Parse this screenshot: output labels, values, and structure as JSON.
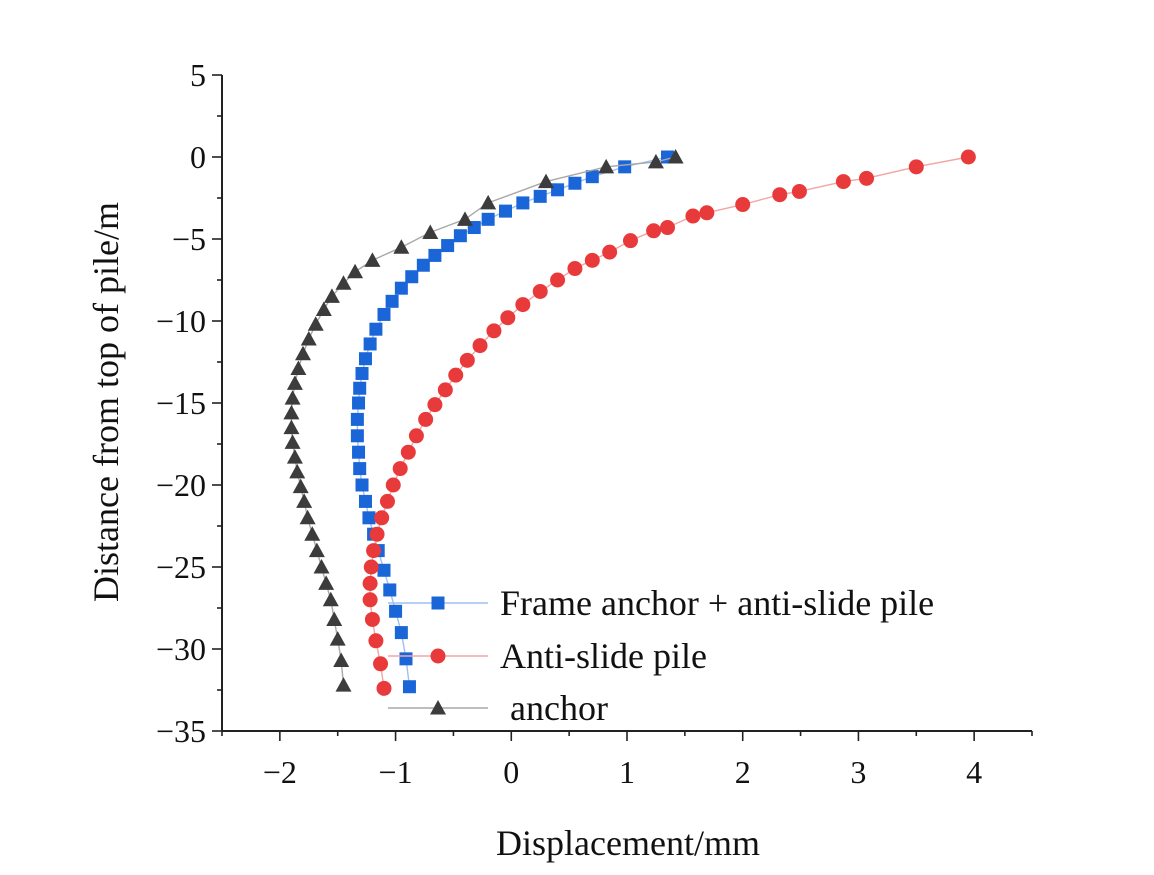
{
  "chart_data": {
    "type": "scatter",
    "title": "",
    "xlabel": "Displacement/mm",
    "ylabel": "Distance from top of pile/m",
    "xlim": [
      -2.5,
      4.5
    ],
    "ylim": [
      -35,
      5
    ],
    "xticks": [
      -2,
      -1,
      0,
      1,
      2,
      3,
      4
    ],
    "xtick_labels": [
      "−2",
      "−1",
      "0",
      "1",
      "2",
      "3",
      "4"
    ],
    "yticks": [
      5,
      0,
      -5,
      -10,
      -15,
      -20,
      -25,
      -30,
      -35
    ],
    "ytick_labels": [
      "5",
      "0",
      "−5",
      "−10",
      "−15",
      "−20",
      "−25",
      "−30",
      "−35"
    ],
    "legend_position": "bottom-right",
    "series": [
      {
        "name": "Frame anchor + anti-slide pile",
        "marker": "square",
        "color": "#1a66d9",
        "line_color": "#9ec0f0",
        "x": [
          1.35,
          0.98,
          0.7,
          0.55,
          0.4,
          0.25,
          0.1,
          -0.05,
          -0.2,
          -0.32,
          -0.44,
          -0.55,
          -0.66,
          -0.76,
          -0.86,
          -0.95,
          -1.03,
          -1.1,
          -1.17,
          -1.22,
          -1.26,
          -1.29,
          -1.31,
          -1.32,
          -1.33,
          -1.33,
          -1.32,
          -1.31,
          -1.29,
          -1.26,
          -1.23,
          -1.19,
          -1.15,
          -1.1,
          -1.05,
          -1.0,
          -0.95,
          -0.91,
          -0.88
        ],
        "y": [
          0,
          -0.6,
          -1.2,
          -1.6,
          -2.0,
          -2.4,
          -2.8,
          -3.3,
          -3.8,
          -4.3,
          -4.8,
          -5.4,
          -6.0,
          -6.6,
          -7.3,
          -8.0,
          -8.8,
          -9.6,
          -10.5,
          -11.4,
          -12.3,
          -13.2,
          -14.1,
          -15.0,
          -16.0,
          -17.0,
          -18.0,
          -19.0,
          -20.0,
          -21.0,
          -22.0,
          -23.0,
          -24.0,
          -25.2,
          -26.4,
          -27.7,
          -29.0,
          -30.6,
          -32.3
        ]
      },
      {
        "name": "Anti-slide pile",
        "marker": "circle",
        "color": "#e83a3a",
        "line_color": "#f3a5a5",
        "x": [
          3.95,
          3.5,
          3.07,
          2.87,
          2.49,
          2.32,
          2.0,
          1.69,
          1.57,
          1.35,
          1.23,
          1.03,
          0.85,
          0.7,
          0.55,
          0.4,
          0.25,
          0.1,
          -0.03,
          -0.15,
          -0.27,
          -0.38,
          -0.48,
          -0.57,
          -0.66,
          -0.74,
          -0.82,
          -0.89,
          -0.96,
          -1.02,
          -1.07,
          -1.12,
          -1.16,
          -1.19,
          -1.21,
          -1.22,
          -1.22,
          -1.2,
          -1.17,
          -1.13,
          -1.1
        ],
        "y": [
          0,
          -0.6,
          -1.3,
          -1.5,
          -2.1,
          -2.3,
          -2.9,
          -3.4,
          -3.6,
          -4.3,
          -4.5,
          -5.1,
          -5.8,
          -6.3,
          -6.8,
          -7.5,
          -8.2,
          -9.0,
          -9.8,
          -10.6,
          -11.5,
          -12.4,
          -13.3,
          -14.2,
          -15.1,
          -16.0,
          -17.0,
          -18.0,
          -19.0,
          -20.0,
          -21.0,
          -22.0,
          -23.0,
          -24.0,
          -25.0,
          -26.0,
          -27.0,
          -28.2,
          -29.5,
          -30.9,
          -32.4
        ]
      },
      {
        "name": "anchor",
        "marker": "triangle",
        "color": "#3c3c3c",
        "line_color": "#a8a8a8",
        "x": [
          1.42,
          1.25,
          0.82,
          0.3,
          -0.2,
          -0.4,
          -0.7,
          -0.95,
          -1.2,
          -1.35,
          -1.45,
          -1.55,
          -1.62,
          -1.69,
          -1.75,
          -1.8,
          -1.84,
          -1.87,
          -1.89,
          -1.9,
          -1.9,
          -1.89,
          -1.87,
          -1.85,
          -1.82,
          -1.79,
          -1.76,
          -1.72,
          -1.68,
          -1.64,
          -1.6,
          -1.56,
          -1.53,
          -1.5,
          -1.47,
          -1.45
        ],
        "y": [
          0,
          -0.3,
          -0.6,
          -1.5,
          -2.8,
          -3.8,
          -4.6,
          -5.5,
          -6.3,
          -7.0,
          -7.7,
          -8.5,
          -9.3,
          -10.2,
          -11.1,
          -12.0,
          -12.9,
          -13.8,
          -14.7,
          -15.6,
          -16.5,
          -17.4,
          -18.3,
          -19.2,
          -20.1,
          -21.0,
          -22.0,
          -23.0,
          -24.0,
          -25.0,
          -26.0,
          -27.0,
          -28.2,
          -29.4,
          -30.7,
          -32.2
        ]
      }
    ]
  }
}
